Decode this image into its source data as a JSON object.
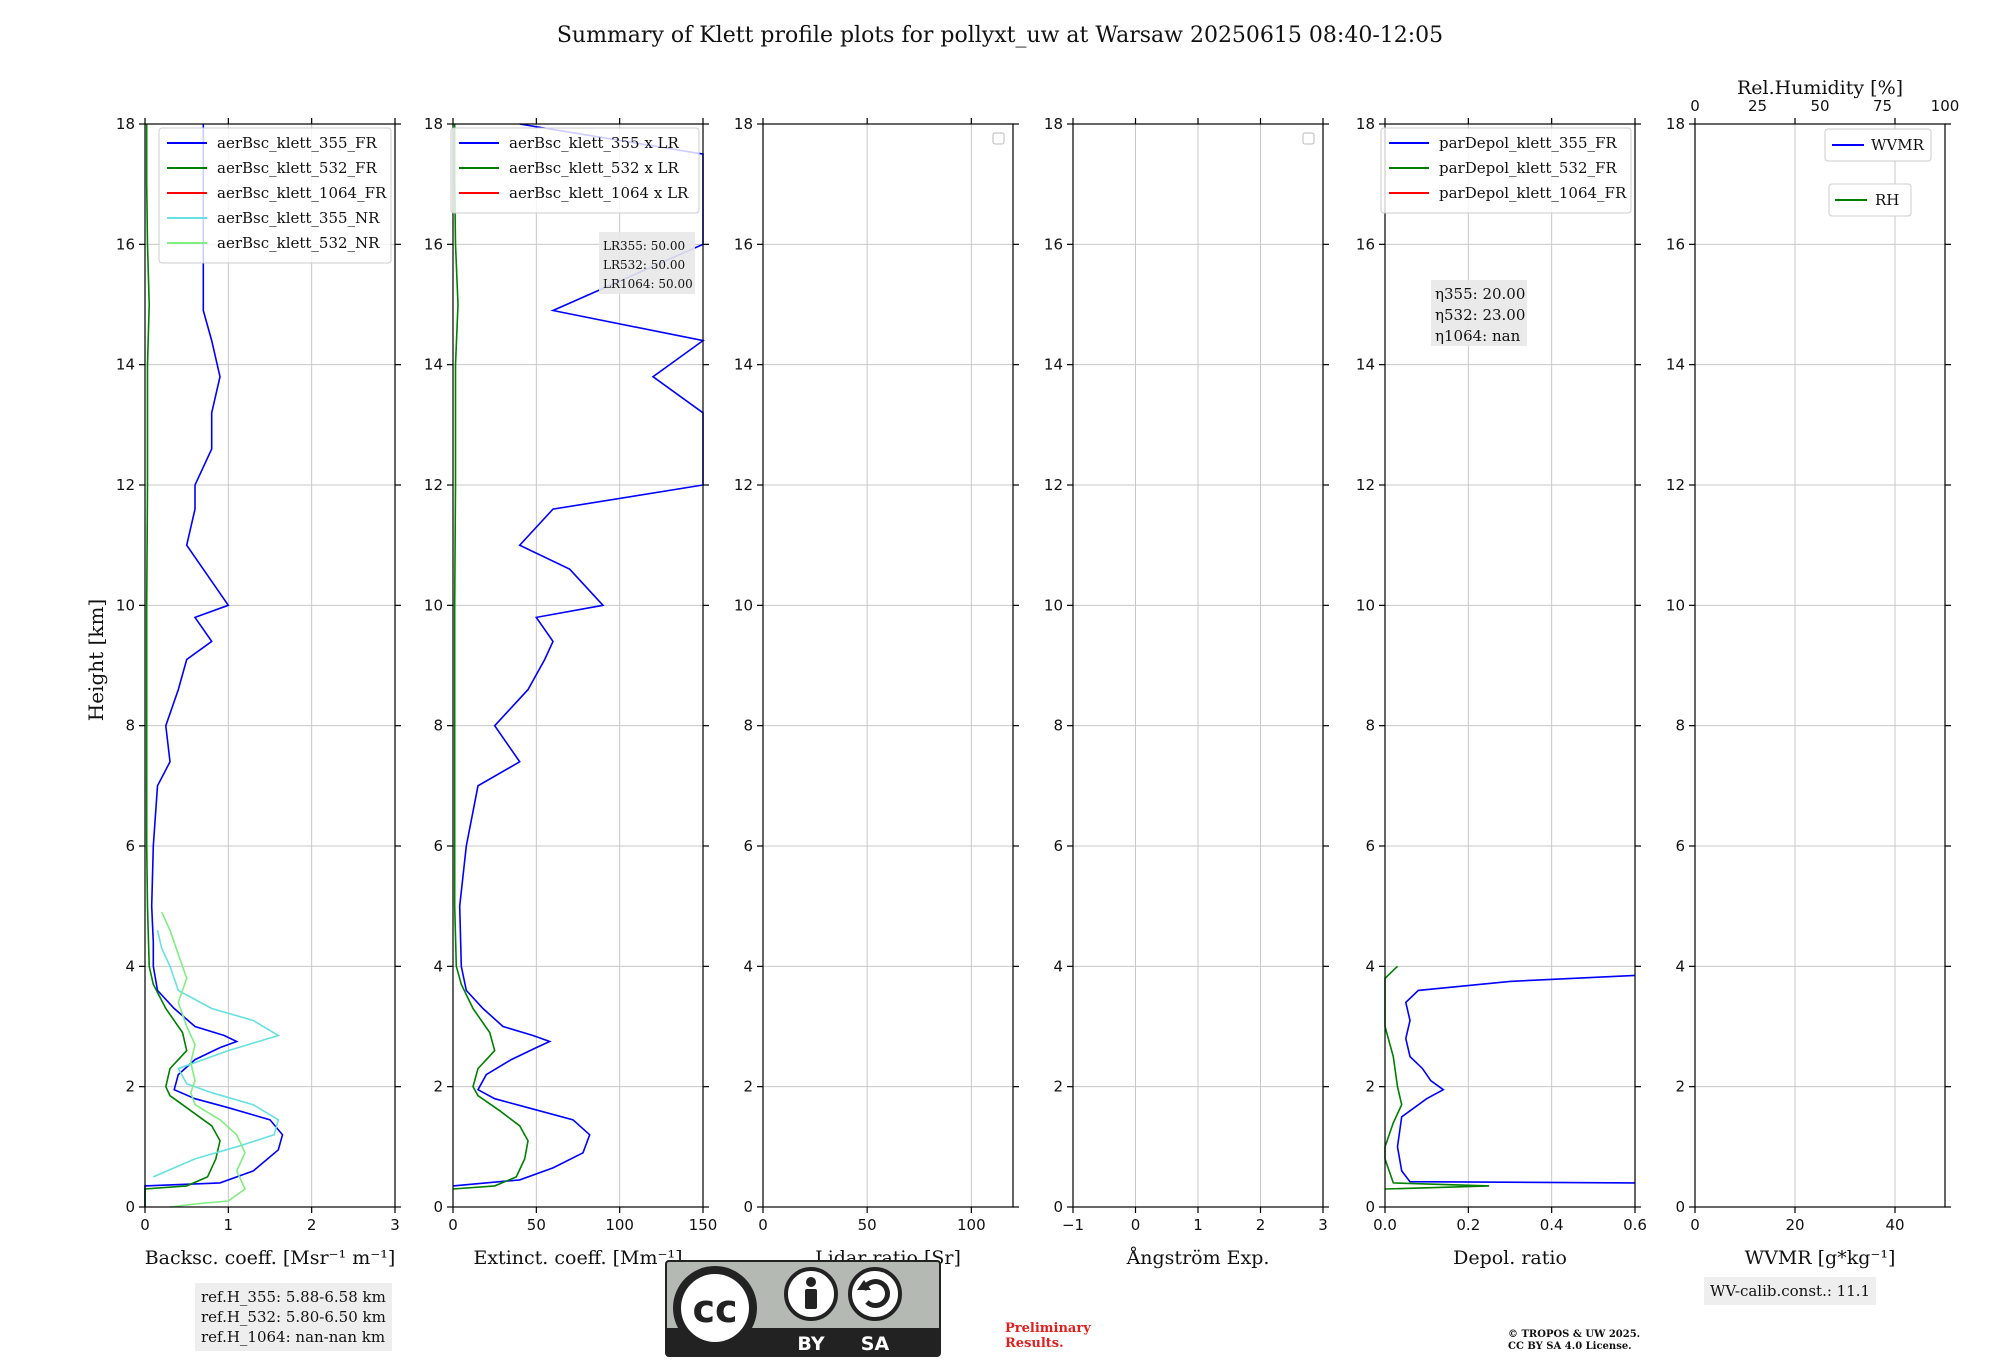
{
  "title": "Summary of Klett profile plots for pollyxt_uw at Warsaw 20250615 08:40-12:05",
  "ylabel": "Height [km]",
  "y_ticks": [
    "0",
    "2",
    "4",
    "6",
    "8",
    "10",
    "12",
    "14",
    "16",
    "18"
  ],
  "chart_data": [
    {
      "type": "line",
      "name": "backscatter",
      "xlabel": "Backsc. coeff. [Msr⁻¹ m⁻¹]",
      "xlim": [
        0,
        3
      ],
      "ylim": [
        0,
        18
      ],
      "x_ticks": [
        "0",
        "1",
        "2",
        "3"
      ],
      "grid": true,
      "legend_position": "top-right",
      "legend": [
        "aerBsc_klett_355_FR",
        "aerBsc_klett_532_FR",
        "aerBsc_klett_1064_FR",
        "aerBsc_klett_355_NR",
        "aerBsc_klett_532_NR"
      ],
      "series": [
        {
          "name": "aerBsc_klett_355_FR",
          "color": "#0000ff",
          "points": [
            [
              0.0,
              0.0
            ],
            [
              0.0,
              0.35
            ],
            [
              0.9,
              0.4
            ],
            [
              1.3,
              0.6
            ],
            [
              1.6,
              0.95
            ],
            [
              1.65,
              1.2
            ],
            [
              1.5,
              1.45
            ],
            [
              1.0,
              1.65
            ],
            [
              0.6,
              1.8
            ],
            [
              0.35,
              1.95
            ],
            [
              0.4,
              2.2
            ],
            [
              0.6,
              2.45
            ],
            [
              0.9,
              2.65
            ],
            [
              1.1,
              2.75
            ],
            [
              0.95,
              2.85
            ],
            [
              0.6,
              3.0
            ],
            [
              0.35,
              3.3
            ],
            [
              0.15,
              3.6
            ],
            [
              0.1,
              4.0
            ],
            [
              0.1,
              4.4
            ],
            [
              0.08,
              5.0
            ],
            [
              0.1,
              6.0
            ],
            [
              0.15,
              7.0
            ],
            [
              0.3,
              7.4
            ],
            [
              0.25,
              8.0
            ],
            [
              0.4,
              8.6
            ],
            [
              0.5,
              9.1
            ],
            [
              0.8,
              9.4
            ],
            [
              0.6,
              9.8
            ],
            [
              1.0,
              10.0
            ],
            [
              0.7,
              10.6
            ],
            [
              0.5,
              11.0
            ],
            [
              0.6,
              11.6
            ],
            [
              0.6,
              12.0
            ],
            [
              0.8,
              12.6
            ],
            [
              0.8,
              13.2
            ],
            [
              0.9,
              13.8
            ],
            [
              0.8,
              14.4
            ],
            [
              0.7,
              14.9
            ],
            [
              0.7,
              16.0
            ],
            [
              0.7,
              17.5
            ],
            [
              0.7,
              18.0
            ]
          ]
        },
        {
          "name": "aerBsc_klett_532_FR",
          "color": "#008000",
          "points": [
            [
              0.0,
              0.0
            ],
            [
              0.0,
              0.3
            ],
            [
              0.5,
              0.35
            ],
            [
              0.75,
              0.5
            ],
            [
              0.85,
              0.8
            ],
            [
              0.9,
              1.1
            ],
            [
              0.8,
              1.35
            ],
            [
              0.55,
              1.6
            ],
            [
              0.3,
              1.85
            ],
            [
              0.25,
              2.0
            ],
            [
              0.3,
              2.3
            ],
            [
              0.5,
              2.6
            ],
            [
              0.45,
              2.9
            ],
            [
              0.25,
              3.3
            ],
            [
              0.1,
              3.7
            ],
            [
              0.05,
              4.0
            ],
            [
              0.03,
              5.0
            ],
            [
              0.02,
              6.0
            ],
            [
              0.02,
              8.0
            ],
            [
              0.02,
              10.0
            ],
            [
              0.03,
              12.0
            ],
            [
              0.03,
              14.0
            ],
            [
              0.05,
              15.0
            ],
            [
              0.03,
              16.0
            ],
            [
              0.02,
              17.0
            ],
            [
              0.02,
              18.0
            ]
          ]
        },
        {
          "name": "aerBsc_klett_355_NR",
          "color": "#66e0e0",
          "points": [
            [
              0.1,
              0.5
            ],
            [
              0.6,
              0.8
            ],
            [
              1.1,
              1.0
            ],
            [
              1.55,
              1.2
            ],
            [
              1.6,
              1.45
            ],
            [
              1.3,
              1.7
            ],
            [
              0.8,
              1.9
            ],
            [
              0.5,
              2.05
            ],
            [
              0.4,
              2.3
            ],
            [
              1.0,
              2.6
            ],
            [
              1.6,
              2.85
            ],
            [
              1.3,
              3.1
            ],
            [
              0.8,
              3.3
            ],
            [
              0.4,
              3.6
            ],
            [
              0.3,
              4.0
            ],
            [
              0.2,
              4.3
            ],
            [
              0.15,
              4.6
            ]
          ]
        },
        {
          "name": "aerBsc_klett_532_NR",
          "color": "#80ee80",
          "points": [
            [
              0.3,
              0.0
            ],
            [
              0.6,
              0.05
            ],
            [
              1.0,
              0.1
            ],
            [
              1.2,
              0.3
            ],
            [
              1.1,
              0.6
            ],
            [
              1.2,
              0.9
            ],
            [
              1.1,
              1.2
            ],
            [
              0.9,
              1.45
            ],
            [
              0.6,
              1.7
            ],
            [
              0.55,
              1.9
            ],
            [
              0.6,
              2.1
            ],
            [
              0.55,
              2.4
            ],
            [
              0.6,
              2.7
            ],
            [
              0.5,
              3.0
            ],
            [
              0.4,
              3.4
            ],
            [
              0.5,
              3.8
            ],
            [
              0.4,
              4.2
            ],
            [
              0.3,
              4.6
            ],
            [
              0.2,
              4.9
            ]
          ]
        }
      ]
    },
    {
      "type": "line",
      "name": "extinction",
      "xlabel": "Extinct. coeff. [Mm⁻¹]",
      "xlim": [
        0,
        150
      ],
      "ylim": [
        0,
        18
      ],
      "x_ticks": [
        "0",
        "50",
        "100",
        "150"
      ],
      "grid": true,
      "legend_position": "top-right",
      "legend": [
        "aerBsc_klett_355 x LR",
        "aerBsc_klett_532 x LR",
        "aerBsc_klett_1064 x LR"
      ],
      "series": [
        {
          "name": "aerBsc_klett_355 x LR",
          "color": "#0000ff",
          "points": [
            [
              0,
              0.35
            ],
            [
              40,
              0.45
            ],
            [
              60,
              0.65
            ],
            [
              78,
              0.9
            ],
            [
              82,
              1.2
            ],
            [
              72,
              1.45
            ],
            [
              45,
              1.65
            ],
            [
              25,
              1.8
            ],
            [
              15,
              1.95
            ],
            [
              20,
              2.2
            ],
            [
              35,
              2.45
            ],
            [
              50,
              2.65
            ],
            [
              58,
              2.75
            ],
            [
              48,
              2.85
            ],
            [
              30,
              3.0
            ],
            [
              18,
              3.3
            ],
            [
              8,
              3.6
            ],
            [
              5,
              4.0
            ],
            [
              4,
              5.0
            ],
            [
              8,
              6.0
            ],
            [
              15,
              7.0
            ],
            [
              40,
              7.4
            ],
            [
              25,
              8.0
            ],
            [
              45,
              8.6
            ],
            [
              55,
              9.1
            ],
            [
              60,
              9.4
            ],
            [
              50,
              9.8
            ],
            [
              90,
              10.0
            ],
            [
              70,
              10.6
            ],
            [
              40,
              11.0
            ],
            [
              60,
              11.6
            ],
            [
              150,
              12.0
            ],
            [
              150,
              12.6
            ],
            [
              150,
              13.2
            ],
            [
              120,
              13.8
            ],
            [
              150,
              14.4
            ],
            [
              60,
              14.9
            ],
            [
              150,
              16.0
            ],
            [
              150,
              17.5
            ],
            [
              40,
              18.0
            ]
          ]
        },
        {
          "name": "aerBsc_klett_532 x LR",
          "color": "#008000",
          "points": [
            [
              0,
              0.3
            ],
            [
              25,
              0.35
            ],
            [
              38,
              0.5
            ],
            [
              43,
              0.8
            ],
            [
              45,
              1.1
            ],
            [
              40,
              1.35
            ],
            [
              28,
              1.6
            ],
            [
              15,
              1.85
            ],
            [
              12,
              2.0
            ],
            [
              15,
              2.3
            ],
            [
              25,
              2.6
            ],
            [
              22,
              2.9
            ],
            [
              12,
              3.3
            ],
            [
              5,
              3.7
            ],
            [
              2,
              4.0
            ],
            [
              1,
              5.0
            ],
            [
              1,
              6.0
            ],
            [
              1,
              8.0
            ],
            [
              1,
              10.0
            ],
            [
              1.5,
              12.0
            ],
            [
              1.5,
              14.0
            ],
            [
              3,
              15.0
            ],
            [
              1.5,
              16.0
            ],
            [
              1,
              17.0
            ],
            [
              1,
              18.0
            ]
          ]
        }
      ],
      "lr_labels": [
        "LR355: 50.00",
        "LR532: 50.00",
        "LR1064: 50.00"
      ]
    },
    {
      "type": "line",
      "name": "lidar-ratio",
      "xlabel": "Lidar ratio [Sr]",
      "xlim": [
        0,
        120
      ],
      "ylim": [
        0,
        18
      ],
      "x_ticks": [
        "0",
        "50",
        "100"
      ],
      "grid": true,
      "series": []
    },
    {
      "type": "line",
      "name": "angstrom",
      "xlabel": "Ångström Exp.",
      "xlim": [
        -1,
        3
      ],
      "ylim": [
        0,
        18
      ],
      "x_ticks": [
        "−1",
        "0",
        "1",
        "2",
        "3"
      ],
      "grid": true,
      "series": []
    },
    {
      "type": "line",
      "name": "depolarization",
      "xlabel": "Depol. ratio",
      "xlim": [
        0,
        0.6
      ],
      "ylim": [
        0,
        18
      ],
      "x_ticks": [
        "0.0",
        "0.2",
        "0.4",
        "0.6"
      ],
      "grid": true,
      "legend_position": "top-right",
      "legend": [
        "parDepol_klett_355_FR",
        "parDepol_klett_532_FR",
        "parDepol_klett_1064_FR"
      ],
      "series": [
        {
          "name": "parDepol_klett_355_FR",
          "color": "#0000ff",
          "points": [
            [
              0.6,
              0.4
            ],
            [
              0.06,
              0.42
            ],
            [
              0.04,
              0.6
            ],
            [
              0.03,
              1.0
            ],
            [
              0.04,
              1.5
            ],
            [
              0.1,
              1.8
            ],
            [
              0.14,
              1.95
            ],
            [
              0.11,
              2.1
            ],
            [
              0.09,
              2.3
            ],
            [
              0.06,
              2.5
            ],
            [
              0.05,
              2.8
            ],
            [
              0.06,
              3.1
            ],
            [
              0.05,
              3.4
            ],
            [
              0.08,
              3.6
            ],
            [
              0.3,
              3.75
            ],
            [
              0.6,
              3.85
            ]
          ]
        },
        {
          "name": "parDepol_klett_532_FR",
          "color": "#008000",
          "points": [
            [
              0.0,
              0.3
            ],
            [
              0.25,
              0.35
            ],
            [
              0.02,
              0.4
            ],
            [
              0.0,
              0.8
            ],
            [
              0.0,
              1.0
            ],
            [
              0.02,
              1.4
            ],
            [
              0.04,
              1.7
            ],
            [
              0.03,
              2.0
            ],
            [
              0.02,
              2.5
            ],
            [
              0.0,
              3.0
            ],
            [
              0.0,
              3.8
            ],
            [
              0.03,
              4.0
            ]
          ]
        }
      ],
      "eta_labels": [
        "η355: 20.00",
        "η532: 23.00",
        "η1064: nan"
      ]
    },
    {
      "type": "line",
      "name": "water-vapor",
      "xlabel": "WVMR [g*kg⁻¹]",
      "xlim": [
        0,
        50
      ],
      "ylim": [
        0,
        18
      ],
      "x_ticks": [
        "0",
        "20",
        "40"
      ],
      "top_xlabel": "Rel.Humidity [%]",
      "top_xlim": [
        0,
        100
      ],
      "top_ticks": [
        "0",
        "25",
        "50",
        "75",
        "100"
      ],
      "grid": true,
      "legend": [
        "WVMR",
        "RH"
      ],
      "series": []
    }
  ],
  "ref_box": "ref.H_355: 5.88-6.58 km\nref.H_532: 5.80-6.50 km\nref.H_1064: nan-nan km",
  "wv_box": "WV-calib.const.: 11.1",
  "prelim": "Preliminary\nResults.",
  "copyright": "© TROPOS & UW 2025.\nCC BY SA 4.0 License.",
  "cc_badge": {
    "cc": "cc",
    "by": "BY",
    "sa": "SA"
  },
  "colors": {
    "blue": "#0000ff",
    "green": "#008000",
    "red": "#ff0000",
    "cyan": "#66e0e0",
    "lightgreen": "#80ee80"
  }
}
